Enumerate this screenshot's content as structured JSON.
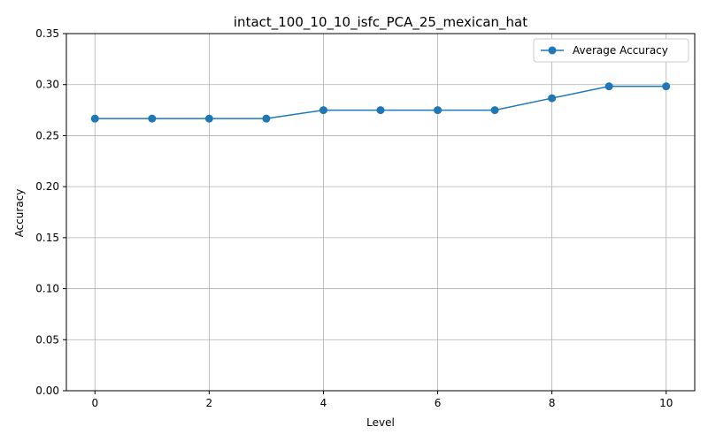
{
  "chart_data": {
    "type": "line",
    "title": "intact_100_10_10_isfc_PCA_25_mexican_hat",
    "xlabel": "Level",
    "ylabel": "Accuracy",
    "xlim": [
      -0.5,
      10.5
    ],
    "ylim": [
      0,
      0.35
    ],
    "xticks": [
      0,
      2,
      4,
      6,
      8,
      10
    ],
    "xtick_labels": [
      "0",
      "2",
      "4",
      "6",
      "8",
      "10"
    ],
    "yticks": [
      0.0,
      0.05,
      0.1,
      0.15,
      0.2,
      0.25,
      0.3,
      0.35
    ],
    "ytick_labels": [
      "0.00",
      "0.05",
      "0.10",
      "0.15",
      "0.20",
      "0.25",
      "0.30",
      "0.35"
    ],
    "grid": true,
    "legend_position": "top-right",
    "series": [
      {
        "name": "Average Accuracy",
        "color": "#1f77b4",
        "marker": "circle",
        "x": [
          0,
          1,
          2,
          3,
          4,
          5,
          6,
          7,
          8,
          9,
          10
        ],
        "y": [
          0.2667,
          0.2667,
          0.2667,
          0.2667,
          0.275,
          0.275,
          0.275,
          0.275,
          0.2867,
          0.2983,
          0.2983
        ]
      }
    ]
  }
}
